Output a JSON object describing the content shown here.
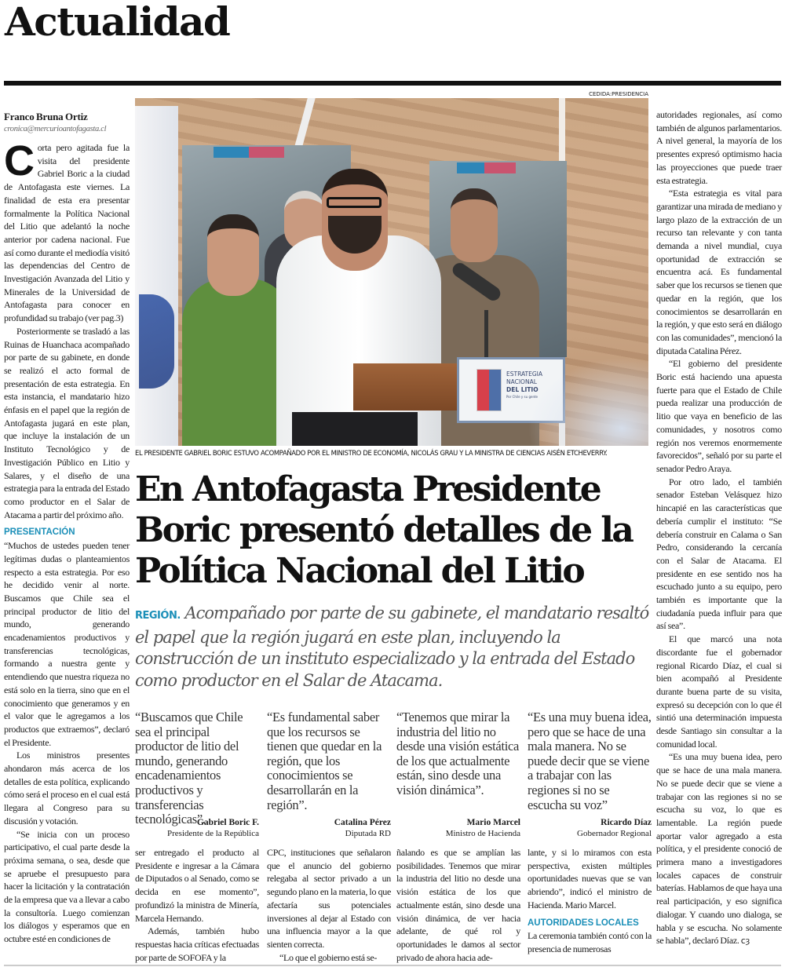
{
  "section": "Actualidad",
  "byline": {
    "author": "Franco Bruna Ortiz",
    "email": "cronica@mercurioantofagasta.cl"
  },
  "photo": {
    "credit": "CEDIDA:PRESIDENCIA",
    "podium_sign": {
      "line1": "ESTRATEGIA",
      "line2": "NACIONAL",
      "line3": "DEL LITIO",
      "tagline": "Por Chile y su gente"
    },
    "caption": "EL PRESIDENTE GABRIEL BORIC ESTUVO ACOMPAÑADO POR EL MINISTRO DE ECONOMÍA, NICOLÁS GRAU Y LA MINISTRA DE CIENCIAS AISÉN ETCHEVERRY."
  },
  "headline": "En Antofagasta Presidente Boric presentó detalles de la Política Nacional del Litio",
  "deck": {
    "label": "REGIÓN.",
    "text": "Acompañado por parte de su gabinete, el mandatario resaltó el papel que la región jugará en este plan, incluyendo la construcción de un instituto especializado y la entrada del Estado como productor en el Salar de Atacama."
  },
  "left_column": {
    "dropcap": "C",
    "p1": "orta pero agitada fue la visita del presidente Gabriel Boric a la ciudad de Antofagasta este viernes. La finalidad de esta era presentar formalmente la Política Nacional del Litio que adelantó la noche anterior por cadena nacional. Fue así como durante el mediodía visitó las dependencias del Centro de Investigación Avanzada del Litio y Minerales de la Universidad de Antofagasta para conocer en profundidad su trabajo (ver pag.3)",
    "p2": "Posteriormente se trasladó a las Ruinas de Huanchaca acompañado por parte de su gabinete, en donde se realizó el acto formal de presentación de esta estrategia. En esta instancia, el mandatario hizo énfasis en el papel que la región de Antofagasta jugará en este plan, que incluye la instalación de un Instituto Tecnológico y de Investigación Público en Litio y Salares, y el diseño de una estrategia para la entrada del Estado como productor en el Salar de Atacama a partir del próximo año.",
    "subhead": "PRESENTACIÓN",
    "p3": "“Muchos de ustedes pueden tener legítimas dudas o planteamientos respecto a esta estrategia. Por eso he decidido venir al norte. Buscamos que Chile sea el principal productor de litio del mundo, generando encadenamientos productivos y transferencias tecnológicas, formando a nuestra gente y entendiendo que nuestra riqueza no está solo en la tierra, sino que en el conocimiento que generamos y en el valor que le agregamos a los productos que extraemos”, declaró el Presidente.",
    "p4": "Los ministros presentes ahondaron más acerca de los detalles de esta política, explicando cómo será el proceso en el cual está llegara al Congreso para su discusión y votación.",
    "p5": "“Se inicia con un proceso participativo, el cual parte desde la próxima semana, o sea, desde que se apruebe el presupuesto para hacer la licitación y la contratación de la empresa que va a llevar a cabo la consultoría. Luego comienzan los diálogos y esperamos que en octubre esté en condiciones de"
  },
  "quotes": [
    {
      "text": "“Buscamos que Chile sea el principal productor de litio del mundo, generando encadenamientos productivos y transferencias tecnológicas”.",
      "name": "Gabriel Boric F.",
      "role": "Presidente de la República"
    },
    {
      "text": "“Es fundamental saber que los recursos se tienen que quedar en la región, que los conocimientos se desarrollarán en la región”.",
      "name": "Catalina Pérez",
      "role": "Diputada RD"
    },
    {
      "text": "“Tenemos que mirar la industria del litio no desde una visión estática de los que actualmente están, sino desde una visión dinámica”.",
      "name": "Mario Marcel",
      "role": "Ministro de Hacienda"
    },
    {
      "text": "“Es una muy buena idea, pero que se hace de una mala manera. No se puede decir que se viene a trabajar con las regiones si no se escucha su voz”",
      "name": "Ricardo Díaz",
      "role": "Gobernador Regional"
    }
  ],
  "bottom_columns": [
    {
      "p1": "ser entregado el producto al Presidente e ingresar a la Cámara de Diputados o al Senado, como se decida en ese momento”, profundizó la ministra de Minería, Marcela Hernando.",
      "p2": "Además, también hubo respuestas hacia críticas efectuadas por parte de SOFOFA y la"
    },
    {
      "p1": "CPC, instituciones que señalaron que el anuncio del gobierno relegaba al sector privado a un segundo plano en la materia, lo que afectaría sus potenciales inversiones al dejar al Estado con una influencia mayor a la que sienten correcta.",
      "p2": "“Lo que el gobierno está se-"
    },
    {
      "p1": "ñalando es que se amplían las posibilidades. Tenemos que mirar la industria del litio no desde una visión estática de los que actualmente están, sino desde una visión dinámica, de ver hacia adelante, de qué rol y oportunidades le damos al sector privado de ahora hacia ade-"
    },
    {
      "p1": "lante, y si lo miramos con esta perspectiva, existen múltiples oportunidades nuevas que se van abriendo”, indicó el ministro de Hacienda. Mario Marcel.",
      "subhead": "AUTORIDADES LOCALES",
      "p2": "La ceremonia también contó con la presencia de numerosas"
    }
  ],
  "right_column": {
    "p1": "autoridades regionales, así como también de algunos parlamentarios. A nivel general, la mayoría de los presentes expresó optimismo hacia las proyecciones que puede traer esta estrategia.",
    "p2": "“Esta estrategia es vital para garantizar una mirada de mediano y largo plazo de la extracción de un recurso tan relevante y con tanta demanda a nivel mundial, cuya oportunidad de extracción se encuentra acá. Es fundamental saber que los recursos se tienen que quedar en la región, que los conocimientos se desarrollarán en la región, y que esto será en diálogo con las comunidades”, mencionó la diputada Catalina Pérez.",
    "p3": "“El gobierno del presidente Boric está haciendo una apuesta fuerte para que el Estado de Chile pueda realizar una producción de litio que vaya en beneficio de las comunidades, y nosotros como región nos veremos enormemente favorecidos”, señaló por su parte el senador Pedro Araya.",
    "p4": "Por otro lado, el también senador Esteban Velásquez hizo hincapié en las características que debería cumplir el instituto: “Se debería construir en Calama o San Pedro, considerando la cercanía con el Salar de Atacama. El presidente en ese sentido nos ha escuchado junto a su equipo, pero también es importante que la ciudadanía pueda influir para que así sea”.",
    "p5": "El que marcó una nota discordante fue el gobernador regional Ricardo Díaz, el cual si bien acompañó al Presidente durante buena parte de su visita, expresó su decepción con lo que él sintió una determinación impuesta desde Santiago sin consultar a la comunidad local.",
    "p6": "“Es una muy buena idea, pero que se hace de una mala manera. No se puede decir que se viene a trabajar con las regiones si no se escucha su voz, lo que es lamentable. La región puede aportar valor agregado a esta política, y el presidente conoció de primera mano a investigadores locales capaces de construir baterías. Hablamos de que haya una real participación, y eso significa dialogar. Y cuando uno dialoga, se habla y se escucha. No solamente se habla”, declaró Díaz."
  },
  "colors": {
    "accent": "#1b8fb8",
    "rule": "#111111",
    "deck_text": "#555555"
  }
}
